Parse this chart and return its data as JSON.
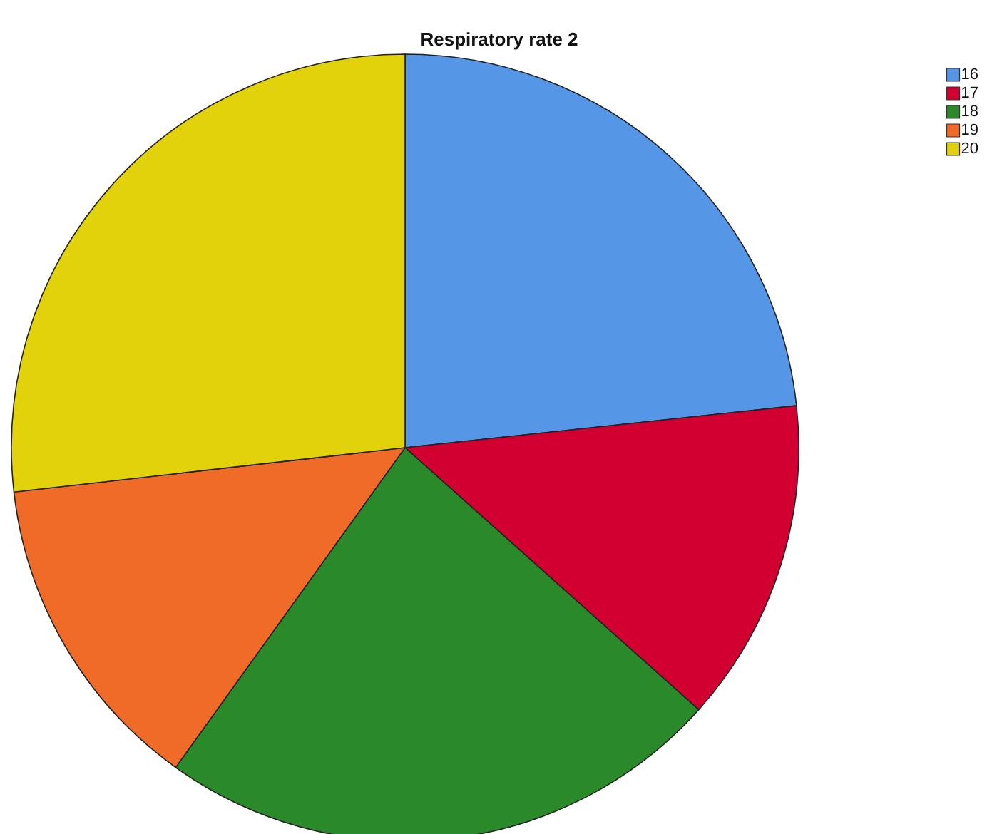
{
  "chart_data": {
    "type": "pie",
    "title": "Respiratory rate 2",
    "categories": [
      "16",
      "17",
      "18",
      "19",
      "20"
    ],
    "values": [
      23.3,
      13.3,
      23.3,
      13.3,
      26.8
    ],
    "colors": [
      "#5596e6",
      "#d20030",
      "#2a8a2a",
      "#f06a28",
      "#e2d20c"
    ],
    "legend": "top right"
  }
}
